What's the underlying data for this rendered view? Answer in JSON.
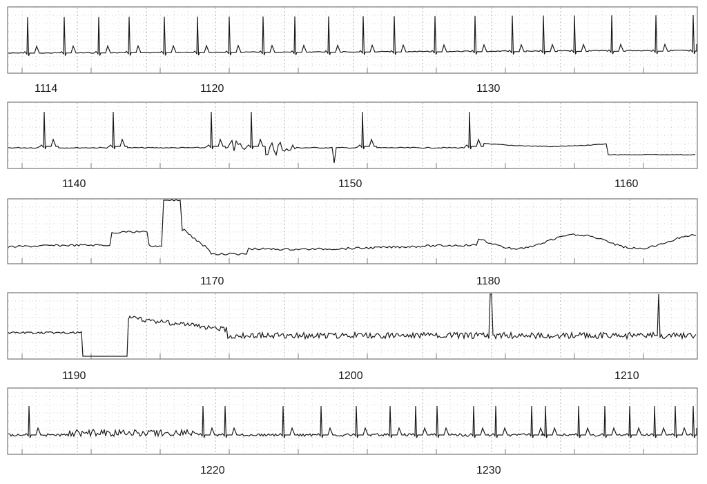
{
  "strips": [
    {
      "labels": [
        "1114",
        "1120",
        "1130"
      ],
      "rhythm": "regular sinus beats"
    },
    {
      "labels": [
        "1140",
        "1150",
        "1160"
      ],
      "rhythm": "sparse beats with artifact burst"
    },
    {
      "labels": [
        "1170",
        "1180"
      ],
      "rhythm": "wandering baseline, large deflection"
    },
    {
      "labels": [
        "1190",
        "1200",
        "1210"
      ],
      "rhythm": "noisy baseline, two spikes"
    },
    {
      "labels": [
        "1220",
        "1230"
      ],
      "rhythm": "recovery, frequent beats"
    }
  ],
  "colors": {
    "trace": "#1a1a1a",
    "grid_dot": "#9a9a9a",
    "frame": "#5a5a5a"
  }
}
